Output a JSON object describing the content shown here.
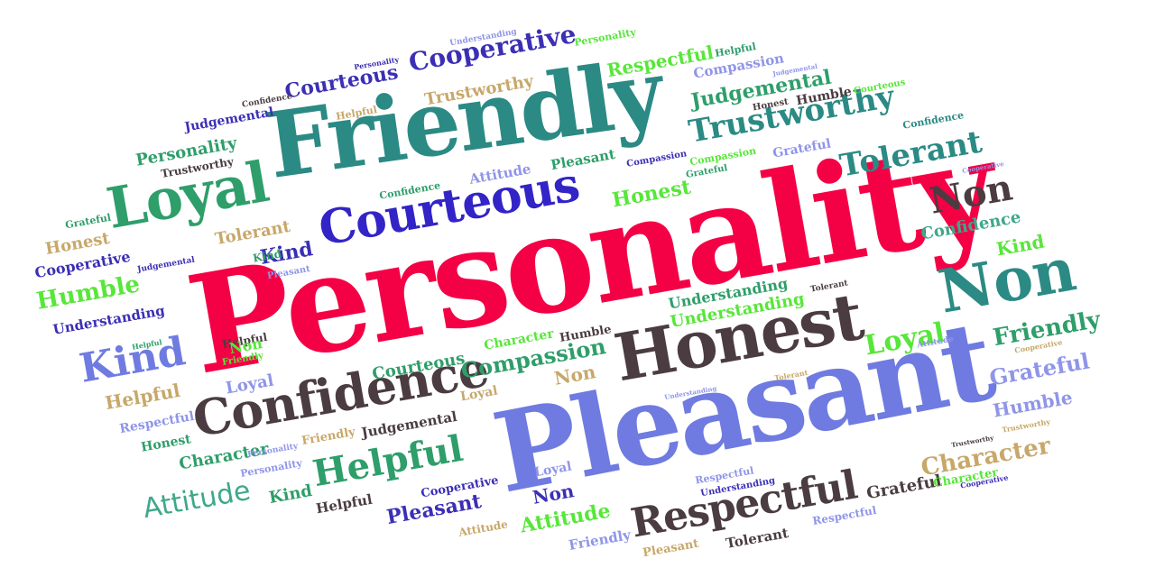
{
  "colors": {
    "red": "#f40045",
    "teal": "#2b8a84",
    "blue": "#3224c6",
    "dark": "#4a3c40",
    "periwinkle": "#6f7be0",
    "green": "#2e9e6a",
    "lime": "#58e63a",
    "tan": "#c7a86a",
    "indigo": "#3b2fb5",
    "lavender": "#8f95e8",
    "seafoam": "#3ea88a"
  },
  "words": [
    {
      "text": "Personality",
      "color": "red"
    },
    {
      "text": "Friendly",
      "color": "teal"
    },
    {
      "text": "Pleasant",
      "color": "periwinkle"
    },
    {
      "text": "Honest",
      "color": "dark"
    },
    {
      "text": "Courteous",
      "color": "blue"
    },
    {
      "text": "Loyal",
      "color": "green"
    },
    {
      "text": "Confidence",
      "color": "dark"
    },
    {
      "text": "Respectful",
      "color": "dark"
    },
    {
      "text": "Non",
      "color": "teal"
    },
    {
      "text": "Non",
      "color": "dark"
    },
    {
      "text": "Helpful",
      "color": "green"
    },
    {
      "text": "Kind",
      "color": "periwinkle"
    },
    {
      "text": "Tolerant",
      "color": "teal"
    },
    {
      "text": "Trustworthy",
      "color": "teal"
    },
    {
      "text": "Cooperative",
      "color": "indigo"
    },
    {
      "text": "Courteous",
      "color": "indigo"
    },
    {
      "text": "Judgemental",
      "color": "green"
    },
    {
      "text": "Respectful",
      "color": "lime"
    },
    {
      "text": "Compassion",
      "color": "lavender"
    },
    {
      "text": "Trustworthy",
      "color": "tan"
    },
    {
      "text": "Personality",
      "color": "green"
    },
    {
      "text": "Humble",
      "color": "lime"
    },
    {
      "text": "Honest",
      "color": "tan"
    },
    {
      "text": "Cooperative",
      "color": "indigo"
    },
    {
      "text": "Understanding",
      "color": "indigo"
    },
    {
      "text": "Helpful",
      "color": "tan"
    },
    {
      "text": "Respectful",
      "color": "lavender"
    },
    {
      "text": "Honest",
      "color": "green"
    },
    {
      "text": "Character",
      "color": "green"
    },
    {
      "text": "Attitude",
      "color": "seafoam"
    },
    {
      "text": "Kind",
      "color": "green"
    },
    {
      "text": "Helpful",
      "color": "dark"
    },
    {
      "text": "Pleasant",
      "color": "indigo"
    },
    {
      "text": "Attitude",
      "color": "lime"
    },
    {
      "text": "Friendly",
      "color": "lavender"
    },
    {
      "text": "Pleasant",
      "color": "tan"
    },
    {
      "text": "Tolerant",
      "color": "dark"
    },
    {
      "text": "Respectful",
      "color": "lavender"
    },
    {
      "text": "Grateful",
      "color": "dark"
    },
    {
      "text": "Character",
      "color": "tan"
    },
    {
      "text": "Character",
      "color": "lime"
    },
    {
      "text": "Friendly",
      "color": "green"
    },
    {
      "text": "Grateful",
      "color": "lavender"
    },
    {
      "text": "Humble",
      "color": "lavender"
    },
    {
      "text": "Loyal",
      "color": "lime"
    },
    {
      "text": "Kind",
      "color": "lime"
    },
    {
      "text": "Confidence",
      "color": "seafoam"
    },
    {
      "text": "Understanding",
      "color": "lime"
    },
    {
      "text": "Compassion",
      "color": "green"
    },
    {
      "text": "Courteous",
      "color": "green"
    },
    {
      "text": "Character",
      "color": "lime"
    },
    {
      "text": "Humble",
      "color": "dark"
    },
    {
      "text": "Non",
      "color": "tan"
    },
    {
      "text": "Loyal",
      "color": "tan"
    },
    {
      "text": "Judgemental",
      "color": "dark"
    },
    {
      "text": "Friendly",
      "color": "tan"
    },
    {
      "text": "Cooperative",
      "color": "indigo"
    },
    {
      "text": "Loyal",
      "color": "lavender"
    },
    {
      "text": "Non",
      "color": "indigo"
    },
    {
      "text": "Attitude",
      "color": "tan"
    },
    {
      "text": "Personality",
      "color": "lavender"
    },
    {
      "text": "Kind",
      "color": "indigo"
    },
    {
      "text": "Helpful",
      "color": "dark"
    },
    {
      "text": "Honest",
      "color": "lime"
    },
    {
      "text": "Attitude",
      "color": "lavender"
    },
    {
      "text": "Pleasant",
      "color": "green"
    },
    {
      "text": "Compassion",
      "color": "indigo"
    },
    {
      "text": "Confidence",
      "color": "green"
    },
    {
      "text": "Tolerant",
      "color": "tan"
    },
    {
      "text": "Kind",
      "color": "green"
    },
    {
      "text": "Pleasant",
      "color": "lavender"
    },
    {
      "text": "Grateful",
      "color": "green"
    },
    {
      "text": "Judgemental",
      "color": "indigo"
    },
    {
      "text": "Personality",
      "color": "indigo"
    },
    {
      "text": "Personality",
      "color": "lime"
    },
    {
      "text": "Trustworthy",
      "color": "dark"
    },
    {
      "text": "Confidence",
      "color": "dark"
    },
    {
      "text": "Helpful",
      "color": "tan"
    },
    {
      "text": "Understanding",
      "color": "lavender"
    },
    {
      "text": "Helpful",
      "color": "green"
    },
    {
      "text": "Judgemental",
      "color": "lavender"
    },
    {
      "text": "Honest",
      "color": "dark"
    },
    {
      "text": "Humble",
      "color": "dark"
    },
    {
      "text": "Courteous",
      "color": "lime"
    },
    {
      "text": "Grateful",
      "color": "lavender"
    },
    {
      "text": "Compassion",
      "color": "lime"
    },
    {
      "text": "Confidence",
      "color": "teal"
    },
    {
      "text": "Cooperative",
      "color": "lavender"
    },
    {
      "text": "Understanding",
      "color": "green"
    },
    {
      "text": "Tolerant",
      "color": "dark"
    },
    {
      "text": "Attitude",
      "color": "lavender"
    },
    {
      "text": "Tolerant",
      "color": "tan"
    },
    {
      "text": "Understanding",
      "color": "lavender"
    },
    {
      "text": "Cooperative",
      "color": "tan"
    },
    {
      "text": "Trustworthy",
      "color": "dark"
    },
    {
      "text": "Trustworthy",
      "color": "tan"
    },
    {
      "text": "Respectful",
      "color": "lavender"
    },
    {
      "text": "Personality",
      "color": "lavender"
    },
    {
      "text": "Understanding",
      "color": "indigo"
    },
    {
      "text": "Judgemental",
      "color": "indigo"
    },
    {
      "text": "Loyal",
      "color": "lavender"
    },
    {
      "text": "Grateful",
      "color": "green"
    },
    {
      "text": "Helpful",
      "color": "green"
    },
    {
      "text": "Cooperative",
      "color": "indigo"
    },
    {
      "text": "Non",
      "color": "lime"
    },
    {
      "text": "Friendly",
      "color": "lime"
    }
  ]
}
